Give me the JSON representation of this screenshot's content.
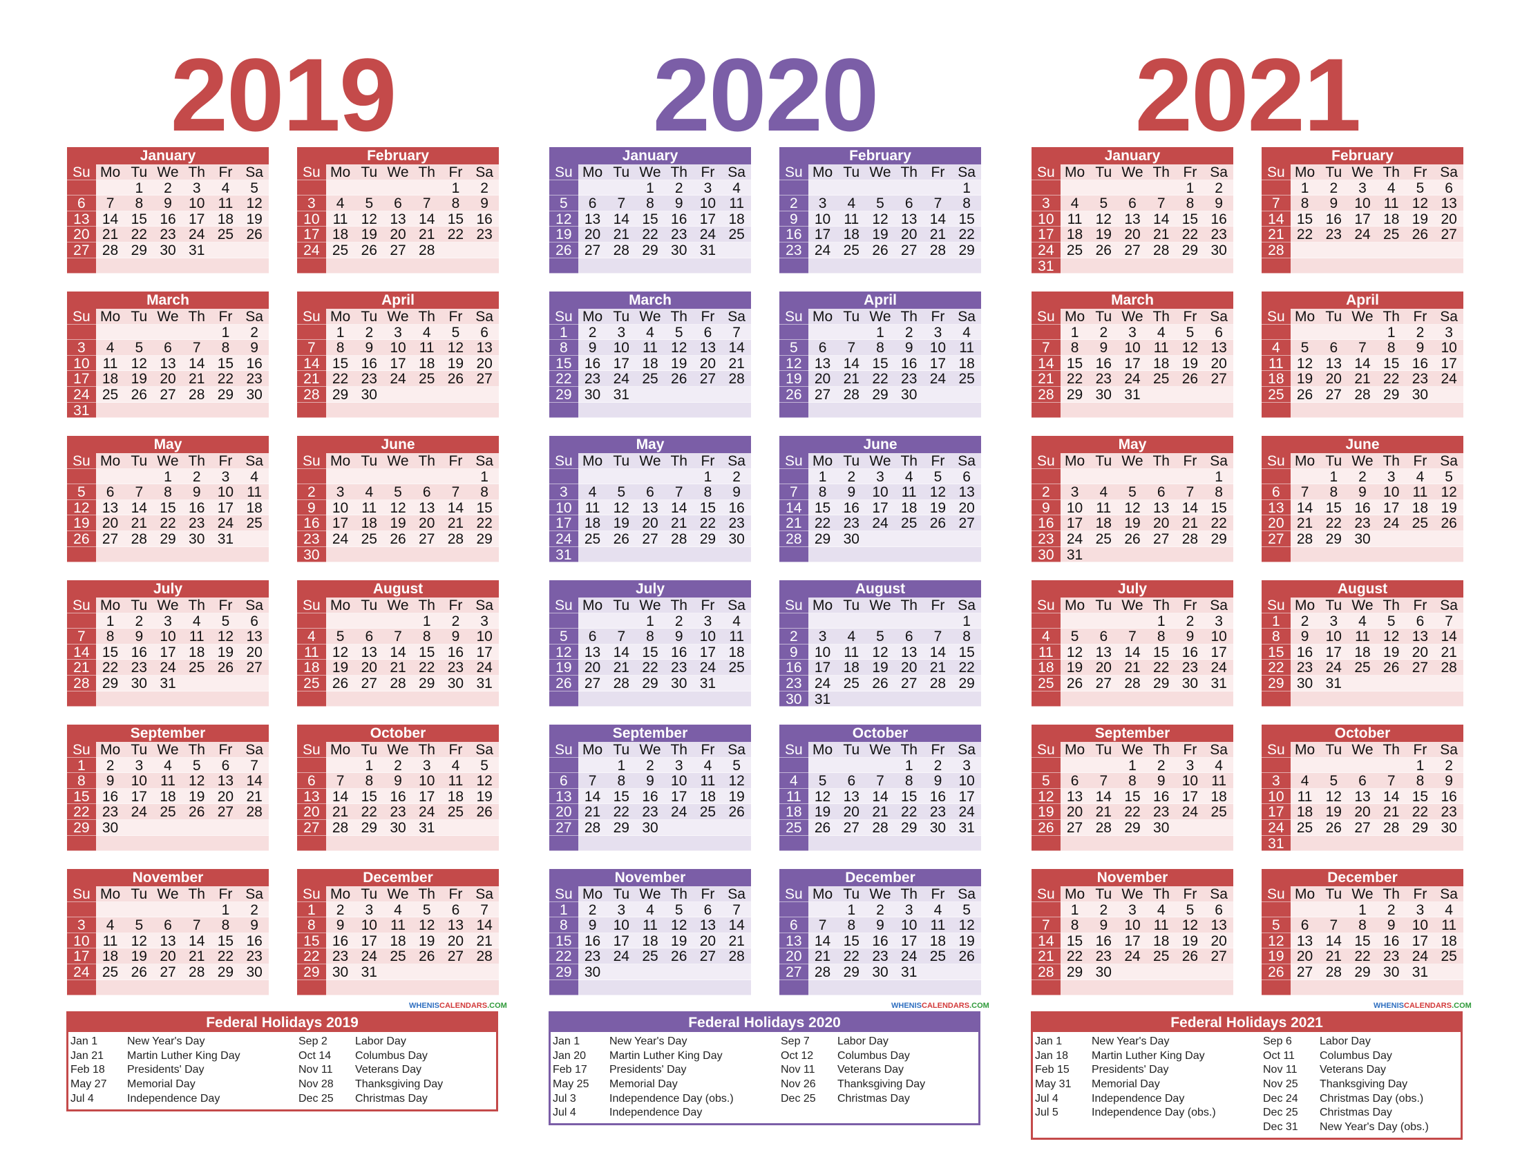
{
  "weekday_labels": [
    "Su",
    "Mo",
    "Tu",
    "We",
    "Th",
    "Fr",
    "Sa"
  ],
  "month_names": [
    "January",
    "February",
    "March",
    "April",
    "May",
    "June",
    "July",
    "August",
    "September",
    "October",
    "November",
    "December"
  ],
  "years": [
    {
      "year": "2019",
      "colors": {
        "title": "#c44a4a",
        "header": "#c44a4a",
        "sunday": "#c44a4a",
        "cell_a": "#f7dede",
        "cell_b": "#fbeeee",
        "border": "#c44a4a"
      },
      "month_start_weekday": [
        2,
        5,
        5,
        1,
        3,
        6,
        1,
        4,
        0,
        2,
        5,
        0
      ],
      "month_days": [
        31,
        28,
        31,
        30,
        31,
        30,
        31,
        31,
        30,
        31,
        30,
        31
      ],
      "holidays_title": "Federal Holidays 2019",
      "holidays_left": [
        {
          "date": "Jan 1",
          "name": "New Year's Day"
        },
        {
          "date": "Jan 21",
          "name": "Martin Luther King Day"
        },
        {
          "date": "Feb 18",
          "name": "Presidents' Day"
        },
        {
          "date": "May 27",
          "name": "Memorial Day"
        },
        {
          "date": "Jul 4",
          "name": "Independence Day"
        }
      ],
      "holidays_right": [
        {
          "date": "Sep 2",
          "name": "Labor Day"
        },
        {
          "date": "Oct 14",
          "name": "Columbus Day"
        },
        {
          "date": "Nov 11",
          "name": "Veterans Day"
        },
        {
          "date": "Nov 28",
          "name": "Thanksgiving Day"
        },
        {
          "date": "Dec 25",
          "name": "Christmas Day"
        }
      ]
    },
    {
      "year": "2020",
      "colors": {
        "title": "#7b5ea7",
        "header": "#7b5ea7",
        "sunday": "#7b5ea7",
        "cell_a": "#e6e0ef",
        "cell_b": "#f1edf6",
        "border": "#7b5ea7"
      },
      "month_start_weekday": [
        3,
        6,
        0,
        3,
        5,
        1,
        3,
        6,
        2,
        4,
        0,
        2
      ],
      "month_days": [
        31,
        29,
        31,
        30,
        31,
        30,
        31,
        31,
        30,
        31,
        30,
        31
      ],
      "holidays_title": "Federal Holidays 2020",
      "holidays_left": [
        {
          "date": "Jan 1",
          "name": "New Year's Day"
        },
        {
          "date": "Jan 20",
          "name": "Martin Luther King Day"
        },
        {
          "date": "Feb 17",
          "name": "Presidents' Day"
        },
        {
          "date": "May 25",
          "name": "Memorial Day"
        },
        {
          "date": "Jul 3",
          "name": "Independence Day (obs.)"
        },
        {
          "date": "Jul 4",
          "name": "Independence Day"
        }
      ],
      "holidays_right": [
        {
          "date": "Sep 7",
          "name": "Labor Day"
        },
        {
          "date": "Oct 12",
          "name": "Columbus Day"
        },
        {
          "date": "Nov 11",
          "name": "Veterans Day"
        },
        {
          "date": "Nov 26",
          "name": "Thanksgiving Day"
        },
        {
          "date": "Dec 25",
          "name": "Christmas Day"
        }
      ]
    },
    {
      "year": "2021",
      "colors": {
        "title": "#c44a4a",
        "header": "#c44a4a",
        "sunday": "#c44a4a",
        "cell_a": "#f7dede",
        "cell_b": "#fbeeee",
        "border": "#c44a4a"
      },
      "month_start_weekday": [
        5,
        1,
        1,
        4,
        6,
        2,
        4,
        0,
        3,
        5,
        1,
        3
      ],
      "month_days": [
        31,
        28,
        31,
        30,
        31,
        30,
        31,
        31,
        30,
        31,
        30,
        31
      ],
      "holidays_title": "Federal Holidays 2021",
      "holidays_left": [
        {
          "date": "Jan 1",
          "name": "New Year's Day"
        },
        {
          "date": "Jan 18",
          "name": "Martin Luther King Day"
        },
        {
          "date": "Feb 15",
          "name": "Presidents' Day"
        },
        {
          "date": "May 31",
          "name": "Memorial Day"
        },
        {
          "date": "Jul 4",
          "name": "Independence Day"
        },
        {
          "date": "Jul 5",
          "name": "Independence Day (obs.)"
        }
      ],
      "holidays_right": [
        {
          "date": "Sep 6",
          "name": "Labor Day"
        },
        {
          "date": "Oct 11",
          "name": "Columbus Day"
        },
        {
          "date": "Nov 11",
          "name": "Veterans Day"
        },
        {
          "date": "Nov 25",
          "name": "Thanksgiving Day"
        },
        {
          "date": "Dec 24",
          "name": "Christmas Day (obs.)"
        },
        {
          "date": "Dec 25",
          "name": "Christmas Day"
        },
        {
          "date": "Dec 31",
          "name": "New Year's Day (obs.)"
        }
      ]
    }
  ],
  "watermark": {
    "part1": "WHENIS",
    "part2": "CALENDARS",
    "part3": ".COM"
  }
}
